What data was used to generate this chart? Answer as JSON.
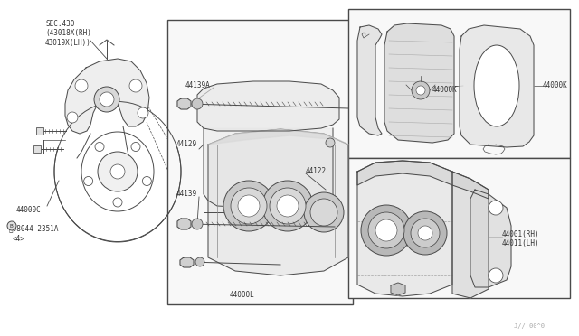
{
  "bg_color": "#ffffff",
  "line_color": "#4a4a4a",
  "text_color": "#333333",
  "fig_width": 6.4,
  "fig_height": 3.72,
  "dpi": 100,
  "labels": {
    "sec430": "SEC.430\n(43018X(RH)\n43019X(LH))",
    "p44000C": "44000C",
    "bolt": "B08044-2351A\n(4)",
    "p44139A": "44139A",
    "p44129": "44129",
    "p44139": "44139",
    "p44122": "44122",
    "p44000L": "44000L",
    "p44000K_1": "44000K",
    "p44000K_2": "44000K",
    "p44001": "44001(RH)\n44011(LH)",
    "watermark": "J// 00^0"
  }
}
